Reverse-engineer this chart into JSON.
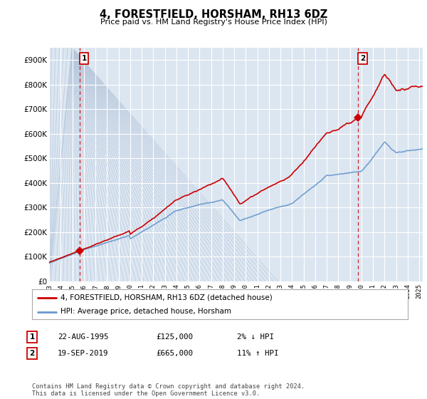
{
  "title": "4, FORESTFIELD, HORSHAM, RH13 6DZ",
  "subtitle": "Price paid vs. HM Land Registry's House Price Index (HPI)",
  "ylim": [
    0,
    950000
  ],
  "xlim_start": 1993.0,
  "xlim_end": 2025.3,
  "background_color": "#ffffff",
  "plot_bg_color": "#dce6f1",
  "grid_color": "#ffffff",
  "hatch_area_end": 1995.0,
  "line_color_hpi": "#6699cc",
  "line_color_price": "#cc0000",
  "point1_x": 1995.64,
  "point1_y": 125000,
  "point2_x": 2019.72,
  "point2_y": 665000,
  "vline1_x": 1995.64,
  "vline2_x": 2019.72,
  "legend_label_price": "4, FORESTFIELD, HORSHAM, RH13 6DZ (detached house)",
  "legend_label_hpi": "HPI: Average price, detached house, Horsham",
  "annotation1_label": "1",
  "annotation2_label": "2",
  "table_rows": [
    [
      "1",
      "22-AUG-1995",
      "£125,000",
      "2% ↓ HPI"
    ],
    [
      "2",
      "19-SEP-2019",
      "£665,000",
      "11% ↑ HPI"
    ]
  ],
  "footnote": "Contains HM Land Registry data © Crown copyright and database right 2024.\nThis data is licensed under the Open Government Licence v3.0."
}
